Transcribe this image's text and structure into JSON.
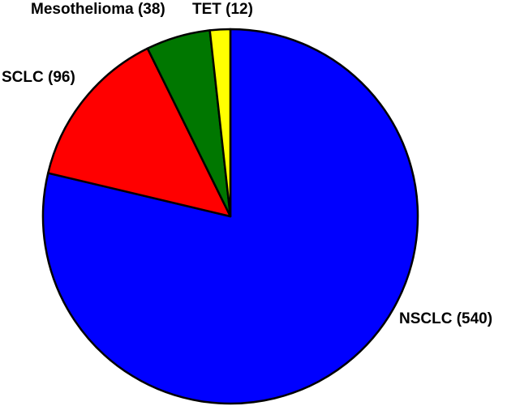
{
  "chart_data": {
    "type": "pie",
    "title": "",
    "start_angle": "top",
    "direction": "clockwise",
    "slices": [
      {
        "label": "NSCLC (540)",
        "category": "NSCLC",
        "value": 540,
        "color": "#0000ff"
      },
      {
        "label": "SCLC (96)",
        "category": "SCLC",
        "value": 96,
        "color": "#ff0000"
      },
      {
        "label": "Mesothelioma (38)",
        "category": "Mesothelioma",
        "value": 38,
        "color": "#007700"
      },
      {
        "label": "TET (12)",
        "category": "TET",
        "value": 12,
        "color": "#ffff00"
      }
    ]
  }
}
